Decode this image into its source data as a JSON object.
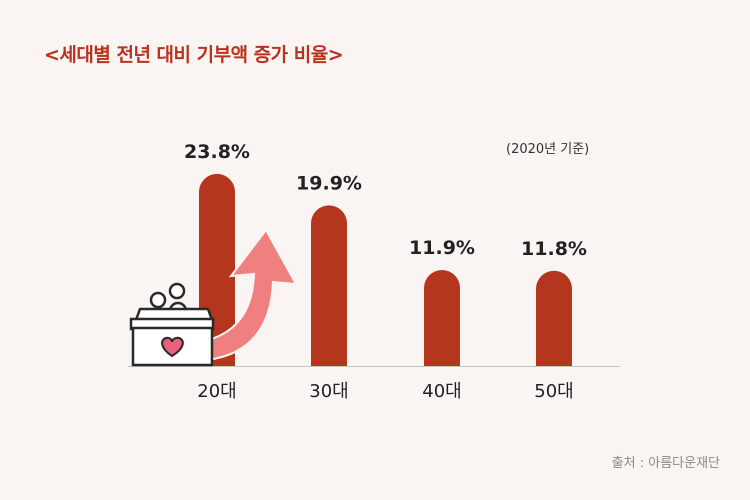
{
  "title": "<세대별 전년 대비 기부액 증가 비율>",
  "note": "(2020년 기준)",
  "source": "출처 : 아름다운재단",
  "chart_data": {
    "type": "bar",
    "title": "<세대별 전년 대비 기부액 증가 비율>",
    "categories": [
      "20대",
      "30대",
      "40대",
      "50대"
    ],
    "values": [
      23.8,
      19.9,
      11.9,
      11.8
    ],
    "value_labels": [
      "23.8%",
      "19.9%",
      "11.9%",
      "11.8%"
    ],
    "unit": "%",
    "ylim": [
      0,
      25
    ],
    "grid": false,
    "legend": "none",
    "bar_color": "#b5361f",
    "arrow_color": "#f08080",
    "heart_color": "#e8607a"
  }
}
